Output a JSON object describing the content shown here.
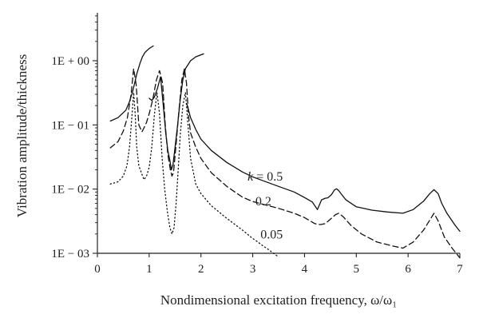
{
  "chart_data": {
    "type": "line",
    "title": "",
    "xlabel": "Nondimensional excitation frequency, ω/ω₁",
    "ylabel": "Vibration amplitude/thickness",
    "xlim": [
      0,
      7
    ],
    "ylim": [
      0.001,
      5
    ],
    "yscale": "log",
    "grid": false,
    "x_ticks": [
      0,
      1,
      2,
      3,
      4,
      5,
      6,
      7
    ],
    "y_ticks": [
      {
        "value": 1,
        "label": "1E + 00"
      },
      {
        "value": 0.1,
        "label": "1E − 01"
      },
      {
        "value": 0.01,
        "label": "1E − 02"
      },
      {
        "value": 0.001,
        "label": "1E − 03"
      }
    ],
    "series": [
      {
        "name": "k = 0.5",
        "style": "solid",
        "x": [
          0.25,
          0.4,
          0.55,
          0.62,
          0.68,
          0.72,
          0.76,
          0.82,
          0.87,
          0.92,
          1.0,
          1.08,
          null,
          1.0,
          1.05,
          1.1,
          1.16,
          1.22,
          1.27,
          1.32,
          1.36,
          1.4,
          1.43,
          1.46,
          1.5,
          1.55,
          1.6,
          1.65,
          1.7,
          1.8,
          1.9,
          2.05,
          null,
          1.73,
          1.8,
          1.9,
          2.0,
          2.2,
          2.5,
          2.8,
          3.0,
          3.2,
          3.5,
          3.8,
          4.0,
          4.15,
          4.25,
          4.33,
          4.4,
          4.45,
          4.52,
          4.58,
          4.62,
          4.66,
          4.72,
          4.8,
          5.0,
          5.3,
          5.6,
          5.9,
          6.1,
          6.3,
          6.42,
          6.5,
          6.58,
          6.65,
          6.75,
          6.9,
          7.0
        ],
        "y": [
          0.115,
          0.13,
          0.17,
          0.23,
          0.33,
          0.45,
          0.62,
          0.9,
          1.15,
          1.35,
          1.55,
          1.7,
          null,
          0.26,
          0.24,
          0.27,
          0.37,
          0.56,
          0.21,
          0.075,
          0.04,
          0.028,
          0.02,
          0.024,
          0.045,
          0.1,
          0.25,
          0.5,
          0.75,
          1.0,
          1.15,
          1.28,
          null,
          0.21,
          0.13,
          0.085,
          0.06,
          0.04,
          0.026,
          0.0185,
          0.0155,
          0.0135,
          0.011,
          0.009,
          0.0074,
          0.0063,
          0.0048,
          0.0068,
          0.0072,
          0.0073,
          0.0082,
          0.0097,
          0.0101,
          0.0095,
          0.0082,
          0.0068,
          0.0053,
          0.0047,
          0.0044,
          0.0042,
          0.0048,
          0.0065,
          0.0085,
          0.0098,
          0.0085,
          0.006,
          0.0042,
          0.0028,
          0.0022
        ]
      },
      {
        "name": "0.2",
        "style": "dashed",
        "x": [
          0.25,
          0.4,
          0.5,
          0.58,
          0.65,
          0.7,
          0.75,
          0.8,
          0.86,
          0.9,
          0.95,
          1.0,
          1.07,
          1.14,
          1.2,
          1.26,
          1.31,
          1.36,
          1.41,
          1.44,
          1.47,
          1.52,
          1.57,
          1.63,
          1.68,
          1.72,
          1.76,
          1.8,
          1.9,
          2.0,
          2.2,
          2.5,
          2.8,
          3.0,
          3.2,
          3.5,
          3.8,
          4.0,
          4.2,
          4.3,
          4.4,
          4.5,
          4.6,
          4.66,
          4.75,
          4.9,
          5.1,
          5.4,
          5.7,
          5.9,
          6.1,
          6.3,
          6.45,
          6.5,
          6.58,
          6.7,
          6.85,
          7.0
        ],
        "y": [
          0.044,
          0.055,
          0.08,
          0.13,
          0.3,
          0.75,
          0.42,
          0.1,
          0.078,
          0.09,
          0.11,
          0.15,
          0.25,
          0.5,
          0.7,
          0.45,
          0.1,
          0.035,
          0.02,
          0.016,
          0.018,
          0.05,
          0.15,
          0.5,
          0.75,
          0.45,
          0.14,
          0.075,
          0.045,
          0.03,
          0.018,
          0.011,
          0.0075,
          0.0064,
          0.0058,
          0.005,
          0.0042,
          0.0036,
          0.0029,
          0.0028,
          0.0029,
          0.0034,
          0.004,
          0.0042,
          0.0037,
          0.0027,
          0.002,
          0.0015,
          0.0013,
          0.0012,
          0.0015,
          0.0023,
          0.0036,
          0.0042,
          0.0032,
          0.0018,
          0.0012,
          0.00085
        ]
      },
      {
        "name": "0.05",
        "style": "dotted",
        "x": [
          0.25,
          0.4,
          0.5,
          0.57,
          0.62,
          0.67,
          0.7,
          0.73,
          0.76,
          0.8,
          0.85,
          0.9,
          0.95,
          1.0,
          1.05,
          1.1,
          1.15,
          1.2,
          1.25,
          1.3,
          1.35,
          1.4,
          1.44,
          1.48,
          1.52,
          1.56,
          1.6,
          1.65,
          1.7,
          1.75,
          1.8,
          1.9,
          2.0,
          2.2,
          2.5,
          2.8,
          3.0,
          3.1,
          3.2,
          3.3,
          3.4,
          3.5
        ],
        "y": [
          0.012,
          0.013,
          0.016,
          0.023,
          0.045,
          0.15,
          0.32,
          0.15,
          0.045,
          0.023,
          0.018,
          0.014,
          0.016,
          0.022,
          0.045,
          0.14,
          0.32,
          0.15,
          0.03,
          0.01,
          0.0045,
          0.0025,
          0.002,
          0.0025,
          0.006,
          0.02,
          0.07,
          0.2,
          0.32,
          0.1,
          0.03,
          0.012,
          0.0085,
          0.0055,
          0.0035,
          0.0023,
          0.0017,
          0.0015,
          0.0013,
          0.00115,
          0.001,
          0.00088
        ]
      }
    ],
    "annotations": [
      {
        "text_k": "k",
        "text_rest": " = 0.5",
        "x": 2.9,
        "y": 0.0135
      },
      {
        "text": "0.2",
        "x": 3.05,
        "y": 0.0056
      },
      {
        "text": "0.05",
        "x": 3.15,
        "y": 0.0017
      }
    ]
  }
}
